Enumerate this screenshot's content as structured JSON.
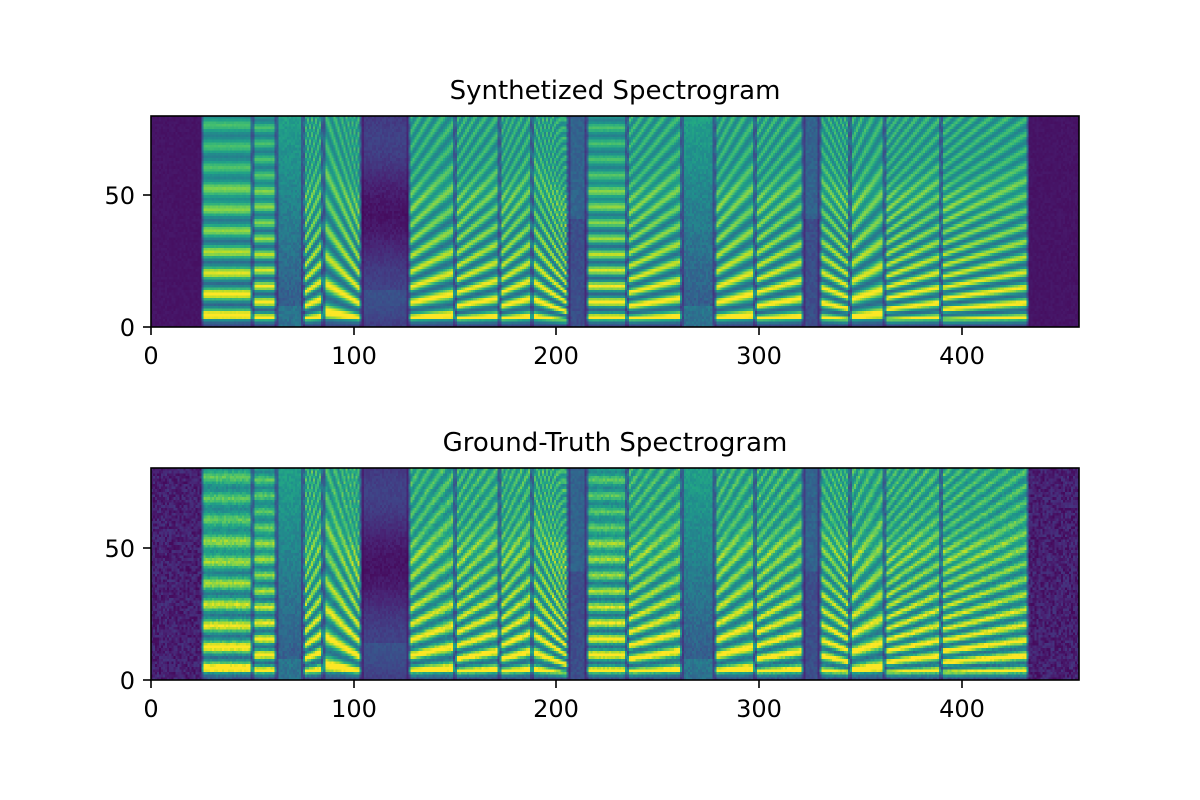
{
  "chart_data": [
    {
      "type": "heatmap",
      "title": "Synthetized Spectrogram",
      "xlabel": "",
      "ylabel": "",
      "xlim": [
        0,
        458
      ],
      "ylim": [
        0,
        80
      ],
      "xticks": [
        0,
        100,
        200,
        300,
        400
      ],
      "yticks": [
        0,
        50
      ],
      "xtick_labels": [
        "0",
        "100",
        "200",
        "300",
        "400"
      ],
      "ytick_labels": [
        "0",
        "50"
      ],
      "colormap": "viridis",
      "noisy_background": false,
      "speech_start": 25,
      "speech_end": 433,
      "segments": [
        {
          "start": 25,
          "end": 50,
          "type": "voiced",
          "f0": 8,
          "sweep": 0
        },
        {
          "start": 50,
          "end": 62,
          "type": "voiced",
          "f0": 6,
          "sweep": 0
        },
        {
          "start": 62,
          "end": 75,
          "type": "fricative"
        },
        {
          "start": 75,
          "end": 85,
          "type": "voiced",
          "f0": 6,
          "sweep": 1
        },
        {
          "start": 85,
          "end": 104,
          "type": "voiced",
          "f0": 8,
          "sweep": -2
        },
        {
          "start": 104,
          "end": 127,
          "type": "silence"
        },
        {
          "start": 127,
          "end": 150,
          "type": "voiced",
          "f0": 7,
          "sweep": 1
        },
        {
          "start": 150,
          "end": 172,
          "type": "voiced",
          "f0": 6,
          "sweep": 1
        },
        {
          "start": 172,
          "end": 188,
          "type": "voiced",
          "f0": 6,
          "sweep": 1
        },
        {
          "start": 188,
          "end": 206,
          "type": "voiced",
          "f0": 5,
          "sweep": -2
        },
        {
          "start": 206,
          "end": 215,
          "type": "gap"
        },
        {
          "start": 215,
          "end": 235,
          "type": "voiced",
          "f0": 6,
          "sweep": 0
        },
        {
          "start": 235,
          "end": 262,
          "type": "voiced",
          "f0": 6,
          "sweep": 1
        },
        {
          "start": 262,
          "end": 278,
          "type": "fricative"
        },
        {
          "start": 278,
          "end": 298,
          "type": "voiced",
          "f0": 7,
          "sweep": 1
        },
        {
          "start": 298,
          "end": 322,
          "type": "voiced",
          "f0": 6,
          "sweep": 1
        },
        {
          "start": 322,
          "end": 330,
          "type": "gap"
        },
        {
          "start": 330,
          "end": 345,
          "type": "voiced",
          "f0": 5,
          "sweep": -1
        },
        {
          "start": 345,
          "end": 362,
          "type": "voiced",
          "f0": 8,
          "sweep": 1
        },
        {
          "start": 362,
          "end": 390,
          "type": "voiced",
          "f0": 5,
          "sweep": 1
        },
        {
          "start": 390,
          "end": 433,
          "type": "voiced",
          "f0": 5,
          "sweep": 1
        }
      ]
    },
    {
      "type": "heatmap",
      "title": "Ground-Truth Spectrogram",
      "xlabel": "",
      "ylabel": "",
      "xlim": [
        0,
        458
      ],
      "ylim": [
        0,
        80
      ],
      "xticks": [
        0,
        100,
        200,
        300,
        400
      ],
      "yticks": [
        0,
        50
      ],
      "xtick_labels": [
        "0",
        "100",
        "200",
        "300",
        "400"
      ],
      "ytick_labels": [
        "0",
        "50"
      ],
      "colormap": "viridis",
      "noisy_background": true,
      "speech_start": 25,
      "speech_end": 433,
      "segments": [
        {
          "start": 25,
          "end": 50,
          "type": "voiced",
          "f0": 8,
          "sweep": 0
        },
        {
          "start": 50,
          "end": 62,
          "type": "voiced",
          "f0": 6,
          "sweep": 0
        },
        {
          "start": 62,
          "end": 75,
          "type": "fricative"
        },
        {
          "start": 75,
          "end": 85,
          "type": "voiced",
          "f0": 6,
          "sweep": 1
        },
        {
          "start": 85,
          "end": 104,
          "type": "voiced",
          "f0": 8,
          "sweep": -2
        },
        {
          "start": 104,
          "end": 127,
          "type": "silence"
        },
        {
          "start": 127,
          "end": 150,
          "type": "voiced",
          "f0": 7,
          "sweep": 1
        },
        {
          "start": 150,
          "end": 172,
          "type": "voiced",
          "f0": 6,
          "sweep": 1
        },
        {
          "start": 172,
          "end": 188,
          "type": "voiced",
          "f0": 6,
          "sweep": 1
        },
        {
          "start": 188,
          "end": 206,
          "type": "voiced",
          "f0": 5,
          "sweep": -2
        },
        {
          "start": 206,
          "end": 215,
          "type": "gap"
        },
        {
          "start": 215,
          "end": 235,
          "type": "voiced",
          "f0": 6,
          "sweep": 0
        },
        {
          "start": 235,
          "end": 262,
          "type": "voiced",
          "f0": 6,
          "sweep": 1
        },
        {
          "start": 262,
          "end": 278,
          "type": "fricative"
        },
        {
          "start": 278,
          "end": 298,
          "type": "voiced",
          "f0": 7,
          "sweep": 1
        },
        {
          "start": 298,
          "end": 322,
          "type": "voiced",
          "f0": 6,
          "sweep": 1
        },
        {
          "start": 322,
          "end": 330,
          "type": "gap"
        },
        {
          "start": 330,
          "end": 345,
          "type": "voiced",
          "f0": 5,
          "sweep": -1
        },
        {
          "start": 345,
          "end": 362,
          "type": "voiced",
          "f0": 8,
          "sweep": 1
        },
        {
          "start": 362,
          "end": 390,
          "type": "voiced",
          "f0": 5,
          "sweep": 1
        },
        {
          "start": 390,
          "end": 433,
          "type": "voiced",
          "f0": 5,
          "sweep": 1
        }
      ]
    }
  ]
}
